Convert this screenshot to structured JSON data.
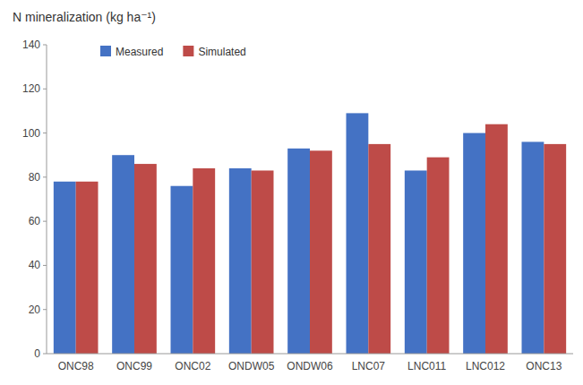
{
  "chart_data": {
    "type": "bar",
    "ylabel": "N mineralization (kg ha⁻¹)",
    "categories": [
      "ONC98",
      "ONC99",
      "ONC02",
      "ONDW05",
      "ONDW06",
      "LNC07",
      "LNC011",
      "LNC012",
      "ONC13"
    ],
    "series": [
      {
        "name": "Measured",
        "color": "#4472C4",
        "values": [
          78,
          90,
          76,
          84,
          93,
          109,
          83,
          100,
          96
        ]
      },
      {
        "name": "Simulated",
        "color": "#BE4B48",
        "values": [
          78,
          86,
          84,
          83,
          92,
          95,
          89,
          104,
          95
        ]
      }
    ],
    "ylim": [
      0,
      140
    ],
    "yticks": [
      0,
      20,
      40,
      60,
      80,
      100,
      120,
      140
    ],
    "grid": false,
    "legend": "upper left"
  }
}
